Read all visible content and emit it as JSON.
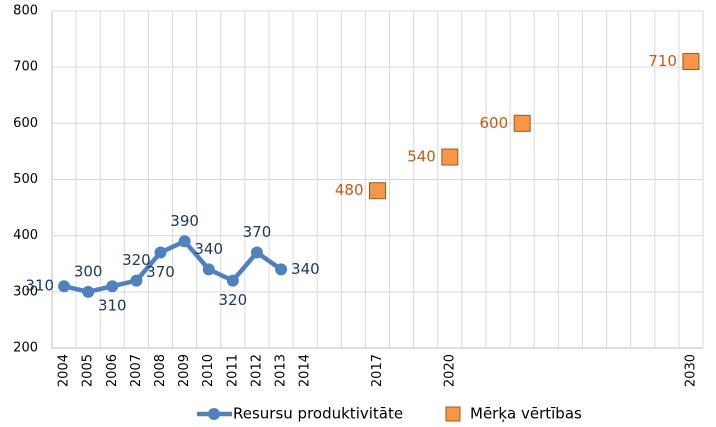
{
  "chart_data": {
    "type": "line",
    "categories": [
      "2004",
      "2005",
      "2006",
      "2007",
      "2008",
      "2009",
      "2010",
      "2011",
      "2012",
      "2013",
      "2014",
      null,
      null,
      "2017",
      null,
      null,
      "2020",
      null,
      null,
      null,
      null,
      null,
      null,
      null,
      null,
      null,
      "2030"
    ],
    "series": [
      {
        "name": "Resursu produktivitāte",
        "color": "#4f81bd",
        "marker": "circle",
        "values": [
          310,
          300,
          310,
          320,
          370,
          390,
          340,
          320,
          370,
          340,
          null,
          null,
          null,
          null,
          null,
          null,
          null,
          null,
          null,
          null,
          null,
          null,
          null,
          null,
          null,
          null,
          null
        ]
      },
      {
        "name": "Mērķa vērtības",
        "color": "#f79646",
        "marker": "square",
        "values": [
          null,
          null,
          null,
          null,
          null,
          null,
          null,
          null,
          null,
          null,
          null,
          null,
          null,
          480,
          null,
          null,
          540,
          null,
          null,
          600,
          null,
          null,
          null,
          null,
          null,
          null,
          710
        ]
      }
    ],
    "ylim": [
      200,
      800
    ],
    "yticks": [
      200,
      300,
      400,
      500,
      600,
      700,
      800
    ],
    "grid": true,
    "legend": "bottom"
  }
}
